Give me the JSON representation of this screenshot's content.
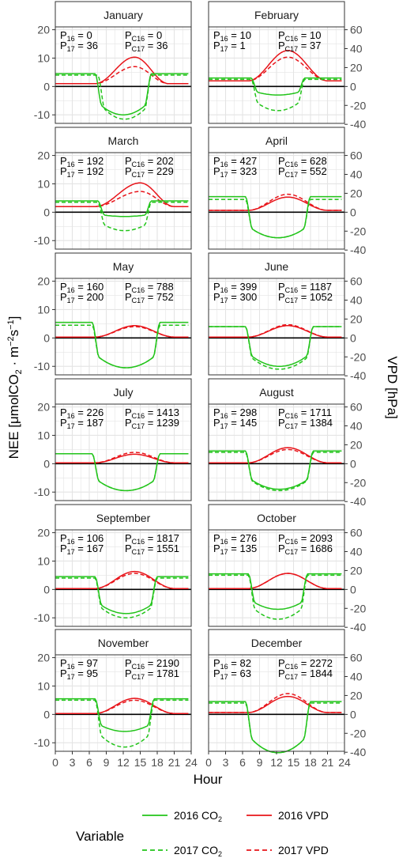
{
  "chart_data": {
    "type": "line",
    "xlabel": "Hour",
    "ylabel_left_main": "NEE [μmolCO",
    "ylabel_left_sub1": "2",
    "ylabel_left_mid": " · m",
    "ylabel_left_sup1": "−2",
    "ylabel_left_s": "s",
    "ylabel_left_sup2": "−1",
    "ylabel_left_end": "]",
    "ylabel_right": "VPD [hPa]",
    "x_ticks": [
      0,
      3,
      6,
      9,
      12,
      15,
      18,
      21,
      24
    ],
    "xlim": [
      0,
      24
    ],
    "y_left_ticks": [
      20,
      10,
      0,
      -10
    ],
    "y_left_lim": [
      -13,
      21
    ],
    "y_right_ticks": [
      60,
      40,
      20,
      0,
      -20,
      -40
    ],
    "y_right_lim": [
      -39,
      63
    ],
    "grid": true,
    "legend": {
      "title": "Variable",
      "entries": [
        {
          "main": "2016 CO",
          "sub": "2",
          "color": "#22c41a",
          "dash": false
        },
        {
          "main": "2016 VPD",
          "sub": "",
          "color": "#e8141a",
          "dash": false
        },
        {
          "main": "2017 CO",
          "sub": "2",
          "color": "#22c41a",
          "dash": true
        },
        {
          "main": "2017 VPD",
          "sub": "",
          "color": "#e8141a",
          "dash": true
        }
      ]
    },
    "colors": {
      "co2": "#22c41a",
      "vpd": "#e8141a",
      "zero": "#000000",
      "grid": "#e4e4e4"
    },
    "panels": [
      {
        "month": "January",
        "p16": "0",
        "p17": "36",
        "pc16": "0",
        "pc17": "36",
        "co2_2016": {
          "night": 4.5,
          "dip": -10,
          "start": 7,
          "end": 17
        },
        "co2_2017": {
          "night": 4.0,
          "dip": -11.5,
          "start": 7.5,
          "end": 17
        },
        "vpd_2016": {
          "base": 3,
          "peak": 31,
          "start": 7,
          "end": 20,
          "peak_h": 14
        },
        "vpd_2017": {
          "base": 3,
          "peak": 21,
          "start": 7,
          "end": 20,
          "peak_h": 14
        }
      },
      {
        "month": "February",
        "p16": "10",
        "p17": "1",
        "pc16": "10",
        "pc17": "37",
        "co2_2016": {
          "night": 3.0,
          "dip": -3,
          "start": 7.5,
          "end": 17
        },
        "co2_2017": {
          "night": 2.5,
          "dip": -8.5,
          "start": 7.5,
          "end": 17
        },
        "vpd_2016": {
          "base": 6,
          "peak": 38,
          "start": 7,
          "end": 21,
          "peak_h": 14
        },
        "vpd_2017": {
          "base": 6,
          "peak": 31,
          "start": 7,
          "end": 21,
          "peak_h": 14
        }
      },
      {
        "month": "March",
        "p16": "192",
        "p17": "192",
        "pc16": "202",
        "pc17": "229",
        "co2_2016": {
          "night": 4.0,
          "dip": -1.5,
          "start": 7.5,
          "end": 17
        },
        "co2_2017": {
          "night": 3.5,
          "dip": -6.5,
          "start": 7.5,
          "end": 17
        },
        "vpd_2016": {
          "base": 6,
          "peak": 31,
          "start": 7,
          "end": 21,
          "peak_h": 15
        },
        "vpd_2017": {
          "base": 6,
          "peak": 22,
          "start": 7,
          "end": 21,
          "peak_h": 15
        }
      },
      {
        "month": "April",
        "p16": "427",
        "p17": "323",
        "pc16": "628",
        "pc17": "552",
        "co2_2016": {
          "night": 5.5,
          "dip": -9,
          "start": 6.5,
          "end": 18
        },
        "co2_2017": {
          "night": 4.5,
          "dip": -9,
          "start": 6.5,
          "end": 18
        },
        "vpd_2016": {
          "base": 2,
          "peak": 16,
          "start": 7,
          "end": 21,
          "peak_h": 14
        },
        "vpd_2017": {
          "base": 2,
          "peak": 19,
          "start": 7,
          "end": 21,
          "peak_h": 14
        }
      },
      {
        "month": "May",
        "p16": "160",
        "p17": "200",
        "pc16": "788",
        "pc17": "752",
        "co2_2016": {
          "night": 5.5,
          "dip": -10.5,
          "start": 6.5,
          "end": 18.5
        },
        "co2_2017": {
          "night": 4.5,
          "dip": -10.5,
          "start": 6.5,
          "end": 18.5
        },
        "vpd_2016": {
          "base": 1,
          "peak": 13,
          "start": 7,
          "end": 21,
          "peak_h": 14
        },
        "vpd_2017": {
          "base": 1,
          "peak": 12,
          "start": 7,
          "end": 21,
          "peak_h": 14
        }
      },
      {
        "month": "June",
        "p16": "399",
        "p17": "300",
        "pc16": "1187",
        "pc17": "1052",
        "co2_2016": {
          "night": 4.0,
          "dip": -10,
          "start": 6.5,
          "end": 18.5
        },
        "co2_2017": {
          "night": 4.0,
          "dip": -11,
          "start": 6.5,
          "end": 18.5
        },
        "vpd_2016": {
          "base": 1,
          "peak": 13,
          "start": 7,
          "end": 21,
          "peak_h": 14
        },
        "vpd_2017": {
          "base": 1,
          "peak": 14,
          "start": 7,
          "end": 21,
          "peak_h": 14
        }
      },
      {
        "month": "July",
        "p16": "226",
        "p17": "187",
        "pc16": "1413",
        "pc17": "1239",
        "co2_2016": {
          "night": 3.5,
          "dip": -9.5,
          "start": 6.5,
          "end": 18.5
        },
        "co2_2017": {
          "night": 3.5,
          "dip": -9.5,
          "start": 6.5,
          "end": 18.5
        },
        "vpd_2016": {
          "base": 1,
          "peak": 10,
          "start": 7,
          "end": 21,
          "peak_h": 14
        },
        "vpd_2017": {
          "base": 1,
          "peak": 12,
          "start": 7,
          "end": 21,
          "peak_h": 14
        }
      },
      {
        "month": "August",
        "p16": "298",
        "p17": "145",
        "pc16": "1711",
        "pc17": "1384",
        "co2_2016": {
          "night": 4.5,
          "dip": -9,
          "start": 6.5,
          "end": 18.5
        },
        "co2_2017": {
          "night": 4.0,
          "dip": -9.5,
          "start": 6.5,
          "end": 18.5
        },
        "vpd_2016": {
          "base": 1,
          "peak": 17,
          "start": 7,
          "end": 21,
          "peak_h": 14
        },
        "vpd_2017": {
          "base": 1,
          "peak": 15,
          "start": 7,
          "end": 21,
          "peak_h": 14
        }
      },
      {
        "month": "September",
        "p16": "106",
        "p17": "167",
        "pc16": "1817",
        "pc17": "1551",
        "co2_2016": {
          "night": 4.5,
          "dip": -8.5,
          "start": 7,
          "end": 18
        },
        "co2_2017": {
          "night": 4.0,
          "dip": -10,
          "start": 7,
          "end": 18
        },
        "vpd_2016": {
          "base": 1,
          "peak": 19,
          "start": 7,
          "end": 21,
          "peak_h": 14
        },
        "vpd_2017": {
          "base": 1,
          "peak": 17,
          "start": 7,
          "end": 21,
          "peak_h": 14
        }
      },
      {
        "month": "October",
        "p16": "276",
        "p17": "135",
        "pc16": "2093",
        "pc17": "1686",
        "co2_2016": {
          "night": 5.5,
          "dip": -7,
          "start": 7,
          "end": 17.5
        },
        "co2_2017": {
          "night": 5.0,
          "dip": -10.5,
          "start": 7,
          "end": 17.5
        },
        "vpd_2016": {
          "base": 1,
          "peak": 17,
          "start": 7,
          "end": 21,
          "peak_h": 14
        },
        "vpd_2017": {
          "base": 1,
          "peak": 17,
          "start": 7,
          "end": 21,
          "peak_h": 14
        }
      },
      {
        "month": "November",
        "p16": "97",
        "p17": "95",
        "pc16": "2190",
        "pc17": "1781",
        "co2_2016": {
          "night": 5.5,
          "dip": -6,
          "start": 7,
          "end": 17.5
        },
        "co2_2017": {
          "night": 5.0,
          "dip": -11.5,
          "start": 7,
          "end": 17.5
        },
        "vpd_2016": {
          "base": 1,
          "peak": 17,
          "start": 7,
          "end": 21,
          "peak_h": 14
        },
        "vpd_2017": {
          "base": 1,
          "peak": 15,
          "start": 7,
          "end": 21,
          "peak_h": 14
        }
      },
      {
        "month": "December",
        "p16": "82",
        "p17": "63",
        "pc16": "2272",
        "pc17": "1844",
        "co2_2016": {
          "night": 4.5,
          "dip": -13.5,
          "start": 6.5,
          "end": 18
        },
        "co2_2017": {
          "night": 4.0,
          "dip": -13.5,
          "start": 6.5,
          "end": 18
        },
        "vpd_2016": {
          "base": 2,
          "peak": 19,
          "start": 7,
          "end": 21,
          "peak_h": 14
        },
        "vpd_2017": {
          "base": 2,
          "peak": 22,
          "start": 7,
          "end": 21,
          "peak_h": 14
        }
      }
    ]
  }
}
